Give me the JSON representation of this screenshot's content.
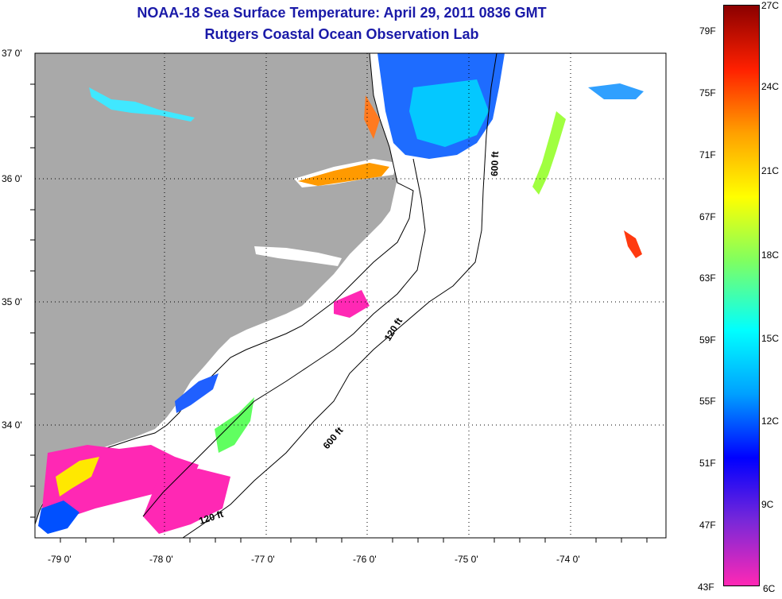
{
  "title": "NOAA-18 Sea Surface Temperature:  April 29, 2011 0836 GMT",
  "subtitle": "Rutgers Coastal Ocean Observation Lab",
  "lat_labels": [
    "37 0'",
    "36 0'",
    "35 0'",
    "34 0'"
  ],
  "lon_labels": [
    "-79 0'",
    "-78 0'",
    "-77 0'",
    "-76 0'",
    "-75 0'",
    "-74 0'"
  ],
  "contour_labels": {
    "c600_north": "600 ft",
    "c120_mid": "120 ft",
    "c600_south": "600 ft",
    "c120_south": "120 ft"
  },
  "colorbar": {
    "fahrenheit": [
      "79F",
      "75F",
      "71F",
      "67F",
      "63F",
      "59F",
      "55F",
      "51F",
      "47F",
      "43F"
    ],
    "celsius": [
      "27C",
      "24C",
      "21C",
      "18C",
      "15C",
      "12C",
      "9C",
      "6C"
    ],
    "colors": [
      "#ff28b4",
      "#7a28d8",
      "#0000ff",
      "#00a0ff",
      "#00ffff",
      "#80ff60",
      "#ffff00",
      "#ffa000",
      "#ff2000",
      "#8b0000"
    ]
  },
  "land_color": "#a9a9a9"
}
